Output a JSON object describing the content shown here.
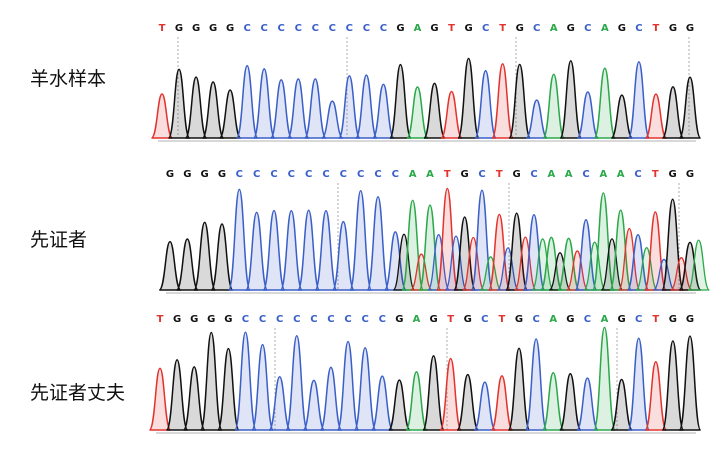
{
  "colors": {
    "A": "#2aa84a",
    "C": "#3a5fc8",
    "G": "#111111",
    "T": "#e2332e",
    "axis": "#b0b0b0",
    "divider": "#9a9a9a"
  },
  "panels": [
    {
      "label": "羊水样本",
      "sequence": "TGGGGCCCCCCCCCGAGTGCTGCAGCAGCTGG",
      "mixed": false
    },
    {
      "label": "先证者",
      "sequence": "GGGGCCCCCCCCCCAATGCTGCAACAACTGG",
      "mixed": true
    },
    {
      "label": "先证者丈夫",
      "sequence": "TGGGGCCCCCCCCCGAGTGCTGCAGCAGCTGG",
      "mixed": false
    }
  ]
}
